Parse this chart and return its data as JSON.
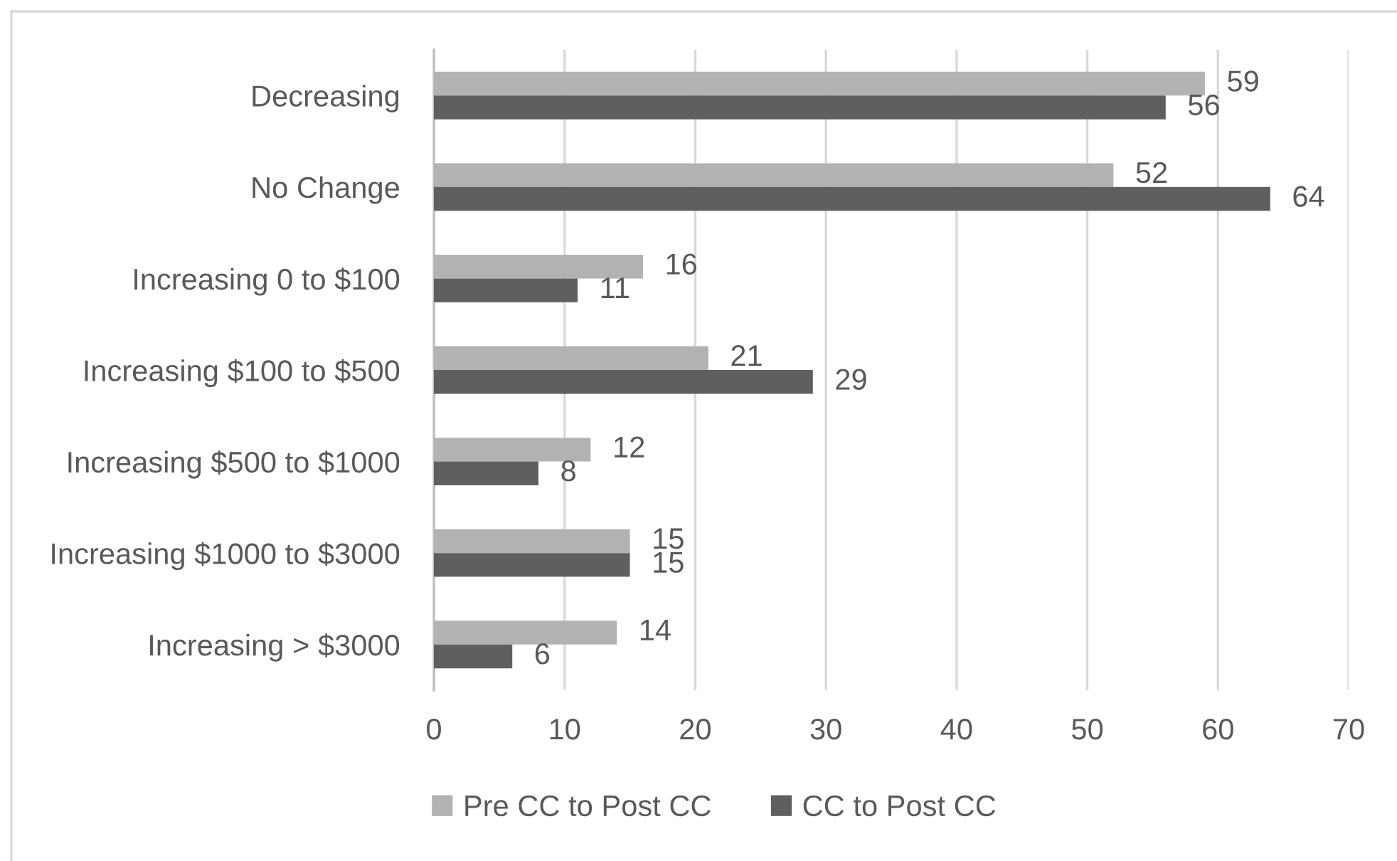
{
  "chart_data": {
    "type": "bar",
    "orientation": "horizontal",
    "categories": [
      "Decreasing",
      "No Change",
      "Increasing 0 to $100",
      "Increasing $100 to $500",
      "Increasing $500 to $1000",
      "Increasing $1000 to $3000",
      "Increasing > $3000"
    ],
    "series": [
      {
        "name": "Pre CC to Post CC",
        "color": "#b2b2b2",
        "values": [
          59,
          52,
          16,
          21,
          12,
          15,
          14
        ]
      },
      {
        "name": "CC to Post CC",
        "color": "#5f5f5f",
        "values": [
          56,
          64,
          11,
          29,
          8,
          15,
          6
        ]
      }
    ],
    "xlim": [
      0,
      70
    ],
    "xticks": [
      0,
      10,
      20,
      30,
      40,
      50,
      60,
      70
    ],
    "grid": "x",
    "legend": "bottom",
    "data_labels": true
  }
}
